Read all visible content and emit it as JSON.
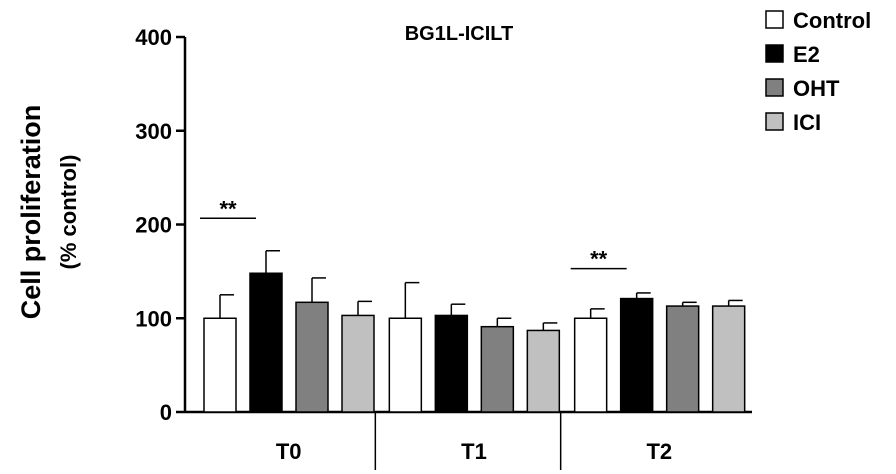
{
  "chart_data": {
    "type": "bar",
    "title": "BG1L-ICILT",
    "ylabel": "Cell proliferation",
    "ylabel_sub": "(% control)",
    "xlabel": "",
    "categories": [
      "T0",
      "T1",
      "T2"
    ],
    "ylim": [
      0,
      400
    ],
    "yticks": [
      0,
      100,
      200,
      300,
      400
    ],
    "grid": false,
    "legend_position": "top-right",
    "series": [
      {
        "name": "Control",
        "color": "#ffffff",
        "values": [
          100,
          100,
          100
        ],
        "errors": [
          25,
          38,
          10
        ]
      },
      {
        "name": "E2",
        "color": "#000000",
        "values": [
          148,
          103,
          121
        ],
        "errors": [
          24,
          12,
          6
        ]
      },
      {
        "name": "OHT",
        "color": "#808080",
        "values": [
          117,
          91,
          113
        ],
        "errors": [
          26,
          9,
          4
        ]
      },
      {
        "name": "ICI",
        "color": "#c0c0c0",
        "values": [
          103,
          87,
          113
        ],
        "errors": [
          15,
          8,
          6
        ]
      }
    ],
    "annotations": [
      {
        "text": "**",
        "category": "T0",
        "between": [
          "Control",
          "E2"
        ]
      },
      {
        "text": "**",
        "category": "T2",
        "between": [
          "Control",
          "E2"
        ]
      }
    ]
  }
}
